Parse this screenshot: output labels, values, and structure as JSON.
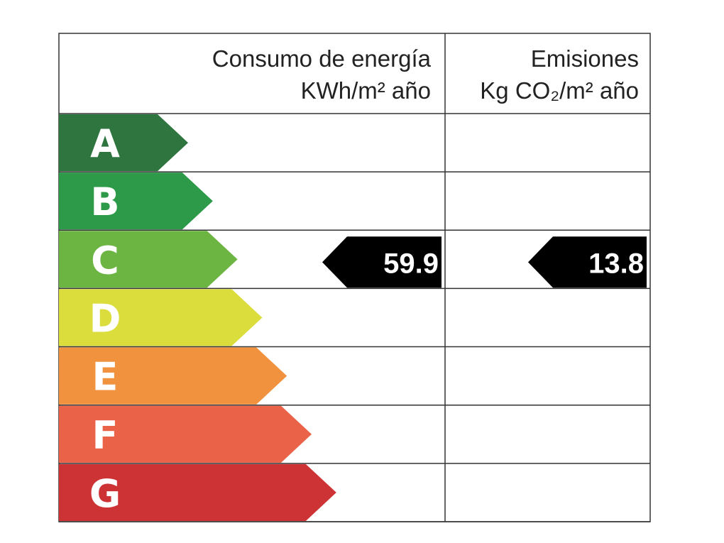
{
  "header": {
    "energy_title": "Consumo de energía",
    "energy_unit": "KWh/m² año",
    "emissions_title": "Emisiones",
    "emissions_unit": "Kg CO₂/m² año"
  },
  "rows": [
    {
      "letter": "A",
      "color": "#2e7540"
    },
    {
      "letter": "B",
      "color": "#2c9a48"
    },
    {
      "letter": "C",
      "color": "#6cb543",
      "energy": 59.9,
      "emissions": 13.8
    },
    {
      "letter": "D",
      "color": "#dbdd3c"
    },
    {
      "letter": "E",
      "color": "#f0923e"
    },
    {
      "letter": "F",
      "color": "#ea6349"
    },
    {
      "letter": "G",
      "color": "#cd3334"
    }
  ]
}
